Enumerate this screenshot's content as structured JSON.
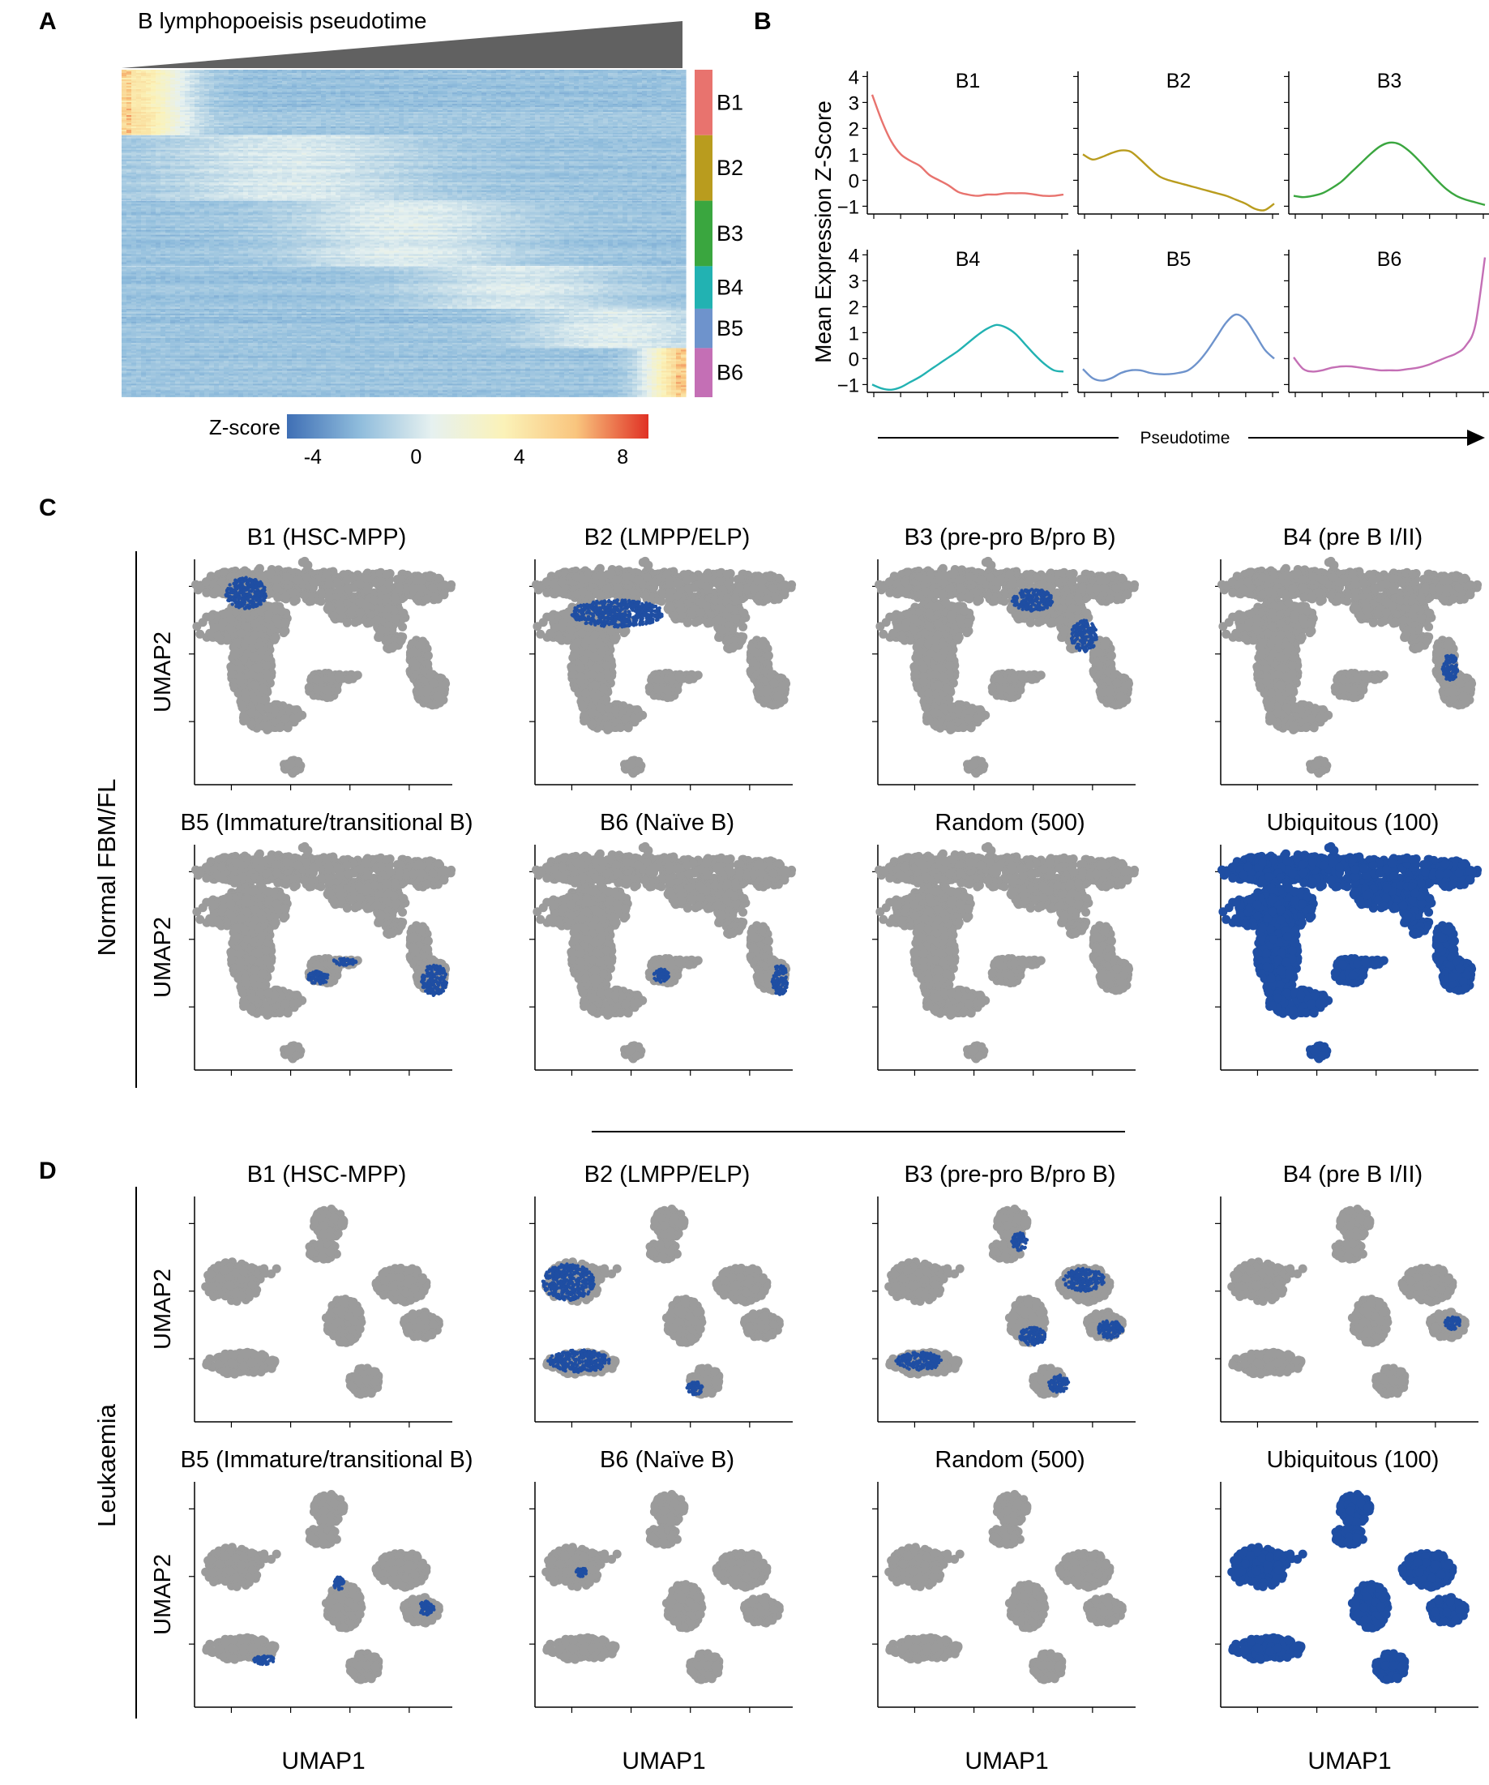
{
  "panel_letters": [
    "A",
    "B",
    "C",
    "D"
  ],
  "chart_data": [
    {
      "panel": "A",
      "type": "heatmap",
      "title": "B lymphopoeisis pseudotime",
      "clusters": [
        {
          "label": "B1",
          "color": "#e8736e"
        },
        {
          "label": "B2",
          "color": "#b99c1e"
        },
        {
          "label": "B3",
          "color": "#3aa63f"
        },
        {
          "label": "B4",
          "color": "#22b2b2"
        },
        {
          "label": "B5",
          "color": "#6e93cc"
        },
        {
          "label": "B6",
          "color": "#c46fb5"
        }
      ],
      "cluster_row_fraction": [
        0.2,
        0.2,
        0.2,
        0.13,
        0.12,
        0.15
      ],
      "colorbar": {
        "label": "Z-score",
        "ticks": [
          "-4",
          "0",
          "4",
          "8"
        ],
        "tick_values": [
          -4,
          0,
          4,
          8
        ],
        "range": [
          -5,
          9
        ],
        "colors": [
          "#3f6fb5",
          "#8fbcdc",
          "#e6f1f0",
          "#fbf2b8",
          "#f9c57e",
          "#e03124"
        ]
      }
    },
    {
      "panel": "B",
      "type": "line",
      "ylabel": "Mean Expression Z-Score",
      "xlabel": "Pseudotime",
      "ylim": [
        -1.3,
        4.2
      ],
      "yticks": [
        "4",
        "3",
        "2",
        "1",
        "0",
        "−1"
      ],
      "ytick_values": [
        4,
        3,
        2,
        1,
        0,
        -1
      ],
      "x": [
        0,
        0.05,
        0.1,
        0.15,
        0.2,
        0.25,
        0.3,
        0.35,
        0.4,
        0.45,
        0.5,
        0.55,
        0.6,
        0.65,
        0.7,
        0.75,
        0.8,
        0.85,
        0.9,
        0.95,
        1.0
      ],
      "series": [
        {
          "name": "B1",
          "color": "#e8736e",
          "values": [
            3.3,
            2.3,
            1.5,
            1.0,
            0.75,
            0.55,
            0.2,
            0.0,
            -0.2,
            -0.45,
            -0.55,
            -0.6,
            -0.55,
            -0.55,
            -0.5,
            -0.5,
            -0.5,
            -0.55,
            -0.6,
            -0.6,
            -0.55
          ]
        },
        {
          "name": "B2",
          "color": "#b99c1e",
          "values": [
            1.0,
            0.8,
            0.9,
            1.05,
            1.15,
            1.1,
            0.8,
            0.45,
            0.15,
            0.0,
            -0.1,
            -0.2,
            -0.3,
            -0.4,
            -0.5,
            -0.6,
            -0.75,
            -0.9,
            -1.1,
            -1.15,
            -0.9
          ]
        },
        {
          "name": "B3",
          "color": "#3aa63f",
          "values": [
            -0.6,
            -0.65,
            -0.6,
            -0.5,
            -0.3,
            -0.05,
            0.3,
            0.65,
            1.0,
            1.3,
            1.45,
            1.4,
            1.15,
            0.8,
            0.4,
            0.0,
            -0.35,
            -0.6,
            -0.75,
            -0.85,
            -0.95
          ]
        },
        {
          "name": "B4",
          "color": "#22b2b2",
          "values": [
            -1.0,
            -1.15,
            -1.2,
            -1.1,
            -0.9,
            -0.7,
            -0.45,
            -0.2,
            0.05,
            0.3,
            0.6,
            0.9,
            1.15,
            1.3,
            1.2,
            0.95,
            0.55,
            0.15,
            -0.2,
            -0.45,
            -0.5
          ]
        },
        {
          "name": "B5",
          "color": "#6e93cc",
          "values": [
            -0.4,
            -0.75,
            -0.85,
            -0.75,
            -0.55,
            -0.45,
            -0.45,
            -0.55,
            -0.6,
            -0.6,
            -0.55,
            -0.45,
            -0.15,
            0.3,
            0.85,
            1.4,
            1.7,
            1.5,
            0.95,
            0.35,
            0.0
          ]
        },
        {
          "name": "B6",
          "color": "#c46fb5",
          "values": [
            0.05,
            -0.4,
            -0.5,
            -0.45,
            -0.35,
            -0.3,
            -0.3,
            -0.35,
            -0.4,
            -0.45,
            -0.45,
            -0.45,
            -0.4,
            -0.35,
            -0.25,
            -0.1,
            0.05,
            0.2,
            0.5,
            1.3,
            3.9
          ]
        }
      ]
    },
    {
      "panel": "C",
      "type": "scatter",
      "group_label": "Normal FBM/FL",
      "xlabel": "UMAP1",
      "ylabel": "UMAP2",
      "highlight_color": "#1f4ea3",
      "base_color": "#9b9b9b",
      "facets": [
        {
          "title": "B1 (HSC-MPP)"
        },
        {
          "title": "B2 (LMPP/ELP)"
        },
        {
          "title": "B3 (pre-pro B/pro B)"
        },
        {
          "title": "B4 (pre B I/II)"
        },
        {
          "title": "B5 (Immature/transitional B)"
        },
        {
          "title": "B6 (Naïve B)"
        },
        {
          "title": "Random (500)"
        },
        {
          "title": "Ubiquitous (100)"
        }
      ]
    },
    {
      "panel": "D",
      "type": "scatter",
      "group_label": "Leukaemia",
      "xlabel": "UMAP1",
      "ylabel": "UMAP2",
      "highlight_color": "#1f4ea3",
      "base_color": "#9b9b9b",
      "facets": [
        {
          "title": "B1 (HSC-MPP)"
        },
        {
          "title": "B2 (LMPP/ELP)"
        },
        {
          "title": "B3 (pre-pro B/pro B)"
        },
        {
          "title": "B4 (pre B I/II)"
        },
        {
          "title": "B5 (Immature/transitional B)"
        },
        {
          "title": "B6 (Naïve B)"
        },
        {
          "title": "Random (500)"
        },
        {
          "title": "Ubiquitous (100)"
        }
      ]
    }
  ]
}
